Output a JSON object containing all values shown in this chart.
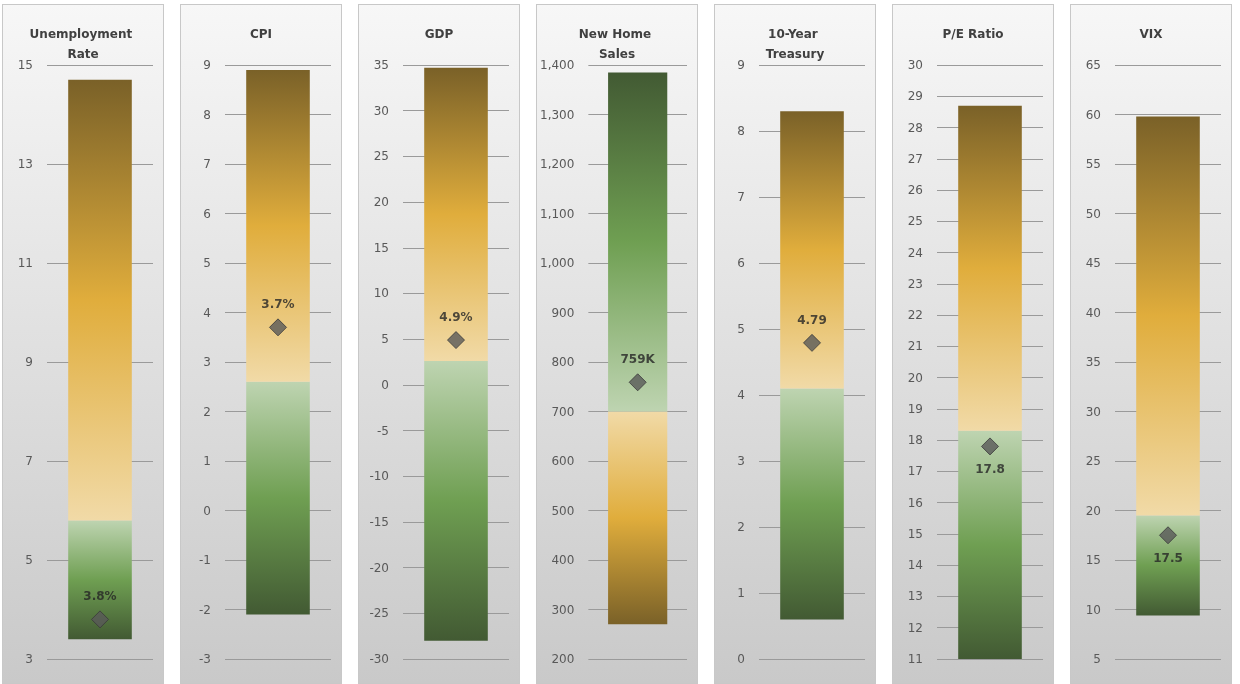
{
  "chart_data": [
    {
      "type": "bar",
      "title": "Unemployment Rate",
      "categories": [
        null
      ],
      "marker": "diamond",
      "grid": "y",
      "tick_labels": "y",
      "ylim": [
        3,
        15
      ],
      "yticks": [
        3,
        5,
        7,
        9,
        11,
        13,
        15
      ],
      "series": [
        {
          "color": "#6f9f52",
          "base": [
            3.4
          ],
          "values": [
            2.4
          ]
        },
        {
          "color": "#e0ad3c",
          "base": [
            5.8
          ],
          "values": [
            8.9
          ]
        },
        {
          "type": "scatter",
          "color": "#595959",
          "values": [
            3.8
          ],
          "value_labels": [
            "3.8%"
          ]
        }
      ]
    },
    {
      "type": "bar",
      "title": "CPI",
      "categories": [
        null
      ],
      "marker": "diamond",
      "grid": "y",
      "tick_labels": "y",
      "ylim": [
        -3,
        9
      ],
      "yticks": [
        -3,
        -2,
        -1,
        0,
        1,
        2,
        3,
        4,
        5,
        6,
        7,
        8,
        9
      ],
      "series": [
        {
          "color": "#6f9f52",
          "base": [
            -2.1
          ],
          "values": [
            4.7
          ]
        },
        {
          "color": "#e0ad3c",
          "base": [
            2.6
          ],
          "values": [
            6.3
          ]
        },
        {
          "type": "scatter",
          "color": "#595959",
          "values": [
            3.7
          ],
          "value_labels": [
            "3.7%"
          ]
        }
      ]
    },
    {
      "type": "bar",
      "title": "GDP",
      "categories": [
        null
      ],
      "marker": "diamond",
      "grid": "y",
      "tick_labels": "y",
      "ylim": [
        -30,
        35
      ],
      "yticks": [
        -30,
        -25,
        -20,
        -15,
        -10,
        -5,
        0,
        5,
        10,
        15,
        20,
        25,
        30,
        35
      ],
      "series": [
        {
          "color": "#6f9f52",
          "base": [
            -28
          ],
          "values": [
            30.6
          ]
        },
        {
          "color": "#e0ad3c",
          "base": [
            2.6
          ],
          "values": [
            32.1
          ]
        },
        {
          "type": "scatter",
          "color": "#595959",
          "values": [
            4.9
          ],
          "value_labels": [
            "4.9%"
          ]
        }
      ]
    },
    {
      "type": "bar",
      "title": "New Home Sales",
      "categories": [
        null
      ],
      "marker": "diamond",
      "grid": "y",
      "tick_labels": "y",
      "ylim": [
        200,
        1400
      ],
      "yticks": [
        200,
        300,
        400,
        500,
        600,
        700,
        800,
        900,
        {
          "value": 1000,
          "label": "1,000"
        },
        {
          "value": 1100,
          "label": "1,100"
        },
        {
          "value": 1200,
          "label": "1,200"
        },
        {
          "value": 1300,
          "label": "1,300"
        },
        {
          "value": 1400,
          "label": "1,400"
        }
      ],
      "series": [
        {
          "color": "#e0ad3c",
          "base": [
            270
          ],
          "values": [
            430
          ]
        },
        {
          "color": "#6f9f52",
          "base": [
            700
          ],
          "values": [
            685
          ]
        },
        {
          "type": "scatter",
          "color": "#595959",
          "values": [
            759
          ],
          "value_labels": [
            "759K"
          ]
        }
      ]
    },
    {
      "type": "bar",
      "title": "10-Year Treasury",
      "categories": [
        null
      ],
      "marker": "diamond",
      "grid": "y",
      "tick_labels": "y",
      "ylim": [
        0,
        9
      ],
      "yticks": [
        0,
        1,
        2,
        3,
        4,
        5,
        6,
        7,
        8,
        9
      ],
      "series": [
        {
          "color": "#6f9f52",
          "base": [
            0.6
          ],
          "values": [
            3.5
          ]
        },
        {
          "color": "#e0ad3c",
          "base": [
            4.1
          ],
          "values": [
            4.2
          ]
        },
        {
          "type": "scatter",
          "color": "#595959",
          "values": [
            4.79
          ],
          "value_labels": [
            "4.79"
          ]
        }
      ]
    },
    {
      "type": "bar",
      "title": "P/E Ratio",
      "categories": [
        null
      ],
      "marker": "diamond",
      "grid": "y",
      "tick_labels": "y",
      "ylim": [
        11,
        30
      ],
      "yticks": [
        11,
        12,
        13,
        14,
        15,
        16,
        17,
        18,
        19,
        20,
        21,
        22,
        23,
        24,
        25,
        26,
        27,
        28,
        29,
        30
      ],
      "series": [
        {
          "color": "#6f9f52",
          "base": [
            11
          ],
          "values": [
            7.3
          ]
        },
        {
          "color": "#e0ad3c",
          "base": [
            18.3
          ],
          "values": [
            10.4
          ]
        },
        {
          "type": "scatter",
          "color": "#595959",
          "values": [
            17.8
          ],
          "value_labels": [
            "17.8"
          ]
        }
      ]
    },
    {
      "type": "bar",
      "title": "VIX",
      "categories": [
        null
      ],
      "marker": "diamond",
      "grid": "y",
      "tick_labels": "y",
      "ylim": [
        5,
        65
      ],
      "yticks": [
        5,
        10,
        15,
        20,
        25,
        30,
        35,
        40,
        45,
        50,
        55,
        60,
        65
      ],
      "series": [
        {
          "color": "#6f9f52",
          "base": [
            9.4
          ],
          "values": [
            10.1
          ]
        },
        {
          "color": "#e0ad3c",
          "base": [
            19.5
          ],
          "values": [
            40.3
          ]
        },
        {
          "type": "scatter",
          "color": "#595959",
          "values": [
            17.5
          ],
          "value_labels": [
            "17.5"
          ]
        }
      ]
    }
  ]
}
